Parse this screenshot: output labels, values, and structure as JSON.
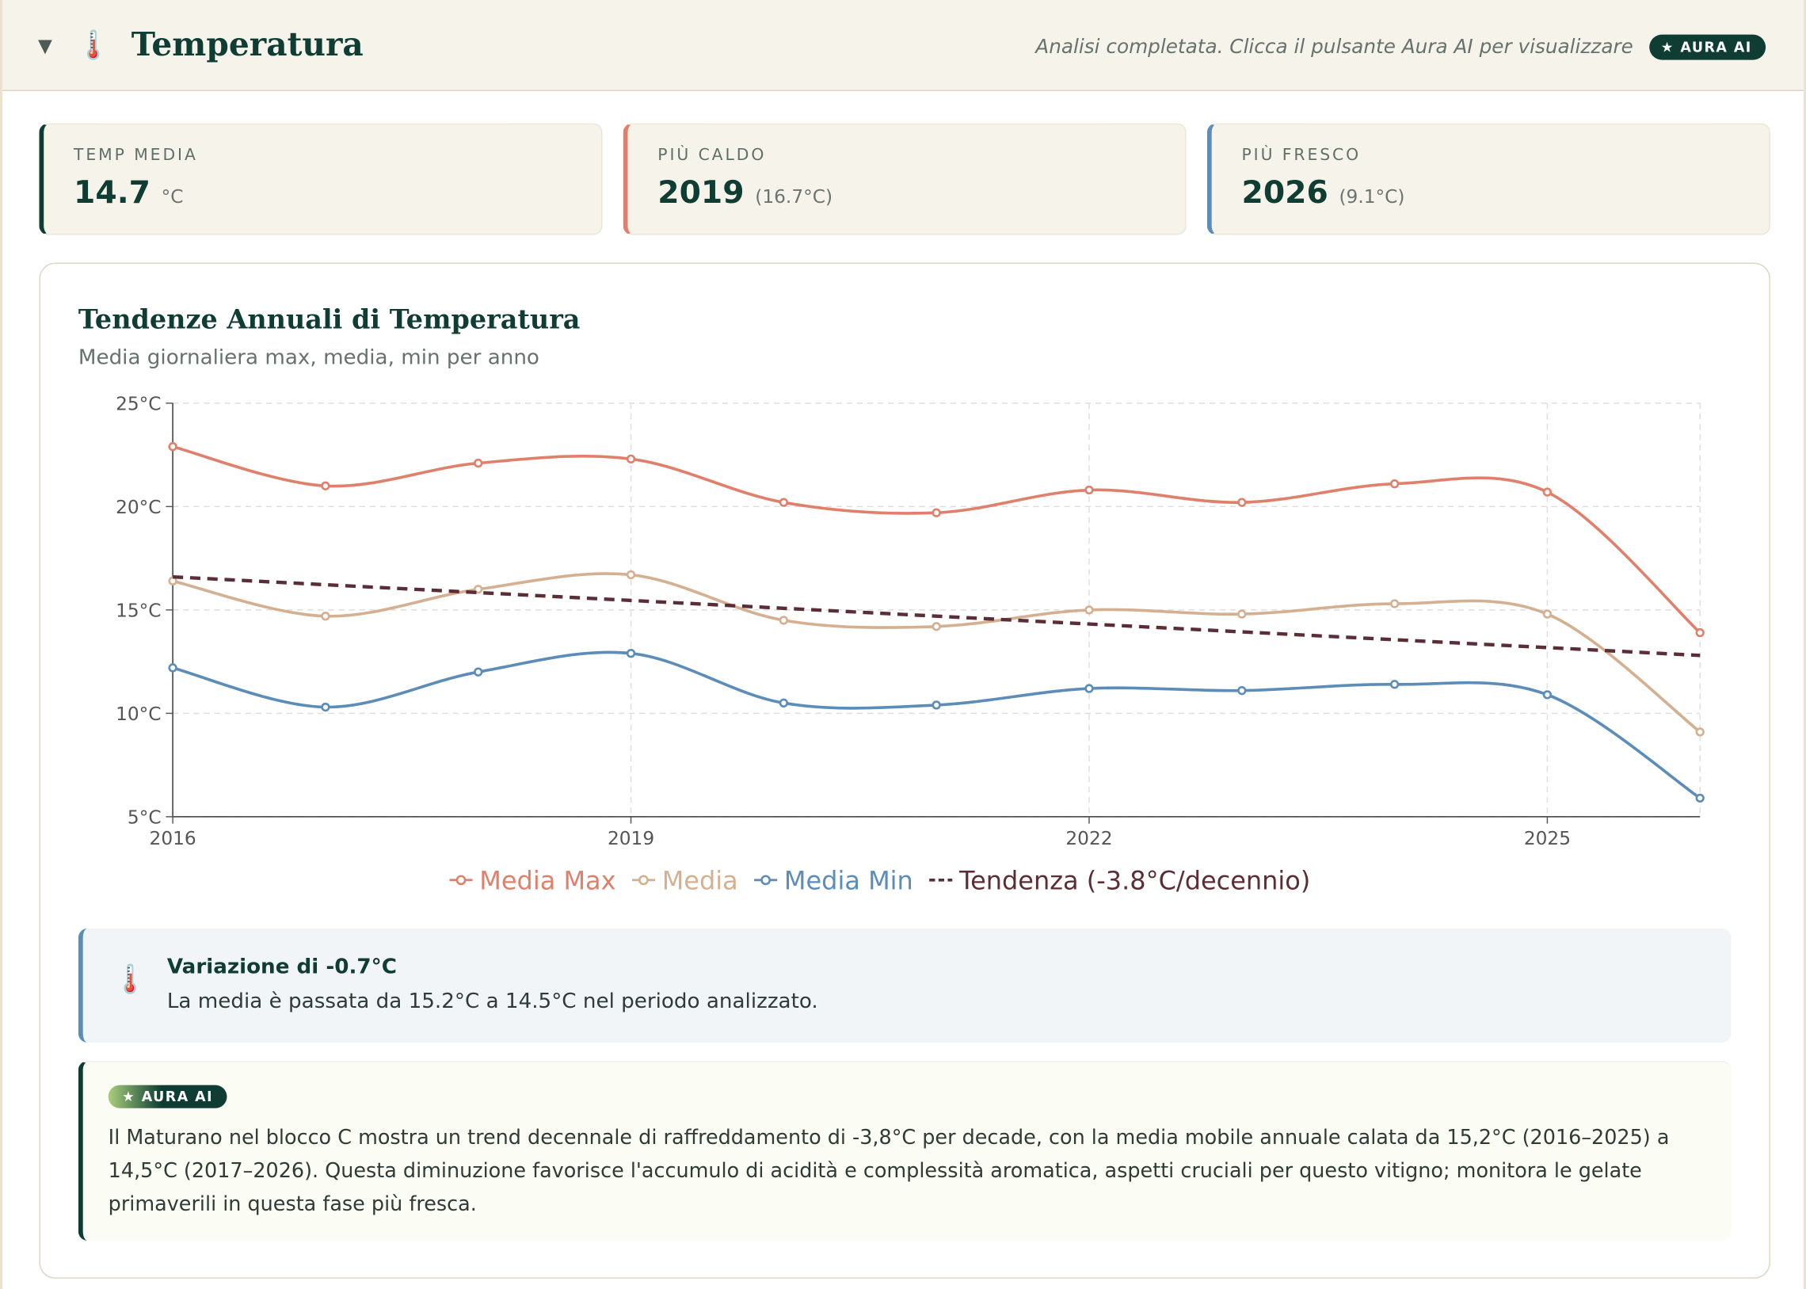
{
  "header": {
    "title": "Temperatura",
    "status": "Analisi completata. Clicca il pulsante Aura AI per visualizzare",
    "badge": "AURA AI"
  },
  "cards": [
    {
      "label": "TEMP MEDIA",
      "value": 14.7,
      "unit": "°C"
    },
    {
      "label": "PIÙ CALDO",
      "value": 2019,
      "detail": "(16.7°C)"
    },
    {
      "label": "PIÙ FRESCO",
      "value": 2026,
      "detail": "(9.1°C)"
    }
  ],
  "chart_data": {
    "type": "line",
    "title": "Tendenze Annuali di Temperatura",
    "subtitle": "Media giornaliera max, media, min per anno",
    "x": [
      2016,
      2017,
      2018,
      2019,
      2020,
      2021,
      2022,
      2023,
      2024,
      2025,
      2026
    ],
    "xlim": [
      2016,
      2026
    ],
    "xticks": [
      2016,
      2019,
      2022,
      2025
    ],
    "ylim": [
      5,
      25
    ],
    "yticks": [
      {
        "value": 5,
        "label": "5°C"
      },
      {
        "value": 10,
        "label": "10°C"
      },
      {
        "value": 15,
        "label": "15°C"
      },
      {
        "value": 20,
        "label": "20°C"
      },
      {
        "value": 25,
        "label": "25°C"
      }
    ],
    "grid": true,
    "series": [
      {
        "name": "Media Max",
        "color": "#e0806a",
        "values": [
          22.9,
          21.0,
          22.1,
          22.3,
          20.2,
          19.7,
          20.8,
          20.2,
          21.1,
          20.7,
          13.9
        ]
      },
      {
        "name": "Media",
        "color": "#d4b091",
        "values": [
          16.4,
          14.7,
          16.0,
          16.7,
          14.5,
          14.2,
          15.0,
          14.8,
          15.3,
          14.8,
          9.1
        ]
      },
      {
        "name": "Media Min",
        "color": "#5b8db8",
        "values": [
          12.2,
          10.3,
          12.0,
          12.9,
          10.5,
          10.4,
          11.2,
          11.1,
          11.4,
          10.9,
          5.9
        ]
      },
      {
        "name": "Tendenza (-3.8°C/decennio)",
        "color": "#5a2d37",
        "dashed": true,
        "x": [
          2016,
          2026
        ],
        "values": [
          16.6,
          12.8
        ]
      }
    ]
  },
  "insight": {
    "title": "Variazione di -0.7°C",
    "text": "La media è passata da 15.2°C a 14.5°C nel periodo analizzato."
  },
  "ai": {
    "badge": "AURA AI",
    "text": "Il Maturano nel blocco C mostra un trend decennale di raffreddamento di -3,8°C per decade, con la media mobile annuale calata da 15,2°C (2016–2025) a 14,5°C (2017–2026). Questa diminuzione favorisce l'accumulo di acidità e complessità aromatica, aspetti cruciali per questo vitigno; monitora le gelate primaverili in questa fase più fresca."
  }
}
